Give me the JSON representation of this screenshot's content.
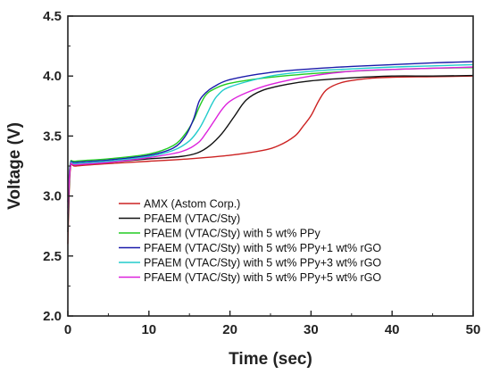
{
  "chart_data": {
    "type": "line",
    "title": "",
    "xlabel": "Time (sec)",
    "ylabel": "Voltage (V)",
    "xlim": [
      0,
      50
    ],
    "ylim": [
      2.0,
      4.5
    ],
    "xticks": [
      0,
      10,
      20,
      30,
      40,
      50
    ],
    "yticks": [
      2.0,
      2.5,
      3.0,
      3.5,
      4.0,
      4.5
    ],
    "legend_position": "bottom-center",
    "grid": false,
    "series": [
      {
        "name": "AMX (Astom Corp.)",
        "color": "#cc2222",
        "points": [
          [
            0,
            2.6
          ],
          [
            0.3,
            3.22
          ],
          [
            1,
            3.25
          ],
          [
            5,
            3.27
          ],
          [
            10,
            3.29
          ],
          [
            15,
            3.31
          ],
          [
            20,
            3.34
          ],
          [
            24,
            3.38
          ],
          [
            26,
            3.42
          ],
          [
            28,
            3.5
          ],
          [
            29,
            3.58
          ],
          [
            30,
            3.67
          ],
          [
            31,
            3.8
          ],
          [
            32,
            3.89
          ],
          [
            34,
            3.95
          ],
          [
            37,
            3.98
          ],
          [
            40,
            3.99
          ],
          [
            45,
            3.995
          ],
          [
            50,
            4.0
          ]
        ]
      },
      {
        "name": "PFAEM (VTAC/Sty)",
        "color": "#111111",
        "points": [
          [
            0,
            2.7
          ],
          [
            0.3,
            3.24
          ],
          [
            1,
            3.26
          ],
          [
            5,
            3.28
          ],
          [
            10,
            3.31
          ],
          [
            14,
            3.33
          ],
          [
            16,
            3.36
          ],
          [
            17.5,
            3.42
          ],
          [
            19,
            3.52
          ],
          [
            20.5,
            3.66
          ],
          [
            22,
            3.8
          ],
          [
            24,
            3.88
          ],
          [
            27,
            3.93
          ],
          [
            30,
            3.96
          ],
          [
            35,
            3.985
          ],
          [
            40,
            4.0
          ],
          [
            45,
            4.0
          ],
          [
            50,
            4.005
          ]
        ]
      },
      {
        "name": "PFAEM (VTAC/Sty) with 5 wt% PPy",
        "color": "#22cc22",
        "points": [
          [
            0,
            3.0
          ],
          [
            0.3,
            3.27
          ],
          [
            1,
            3.29
          ],
          [
            5,
            3.31
          ],
          [
            10,
            3.35
          ],
          [
            13,
            3.42
          ],
          [
            14.5,
            3.52
          ],
          [
            15.5,
            3.63
          ],
          [
            16.2,
            3.74
          ],
          [
            17,
            3.84
          ],
          [
            18,
            3.89
          ],
          [
            20,
            3.94
          ],
          [
            25,
            3.99
          ],
          [
            30,
            4.02
          ],
          [
            35,
            4.04
          ],
          [
            40,
            4.055
          ],
          [
            45,
            4.065
          ],
          [
            50,
            4.07
          ]
        ]
      },
      {
        "name": "PFAEM (VTAC/Sty) with 5 wt% PPy+1 wt% rGO",
        "color": "#1a1aaa",
        "points": [
          [
            0,
            2.95
          ],
          [
            0.3,
            3.26
          ],
          [
            1,
            3.28
          ],
          [
            5,
            3.3
          ],
          [
            10,
            3.34
          ],
          [
            13,
            3.4
          ],
          [
            14.5,
            3.5
          ],
          [
            15.5,
            3.64
          ],
          [
            16.2,
            3.79
          ],
          [
            17,
            3.86
          ],
          [
            18,
            3.91
          ],
          [
            20,
            3.97
          ],
          [
            25,
            4.03
          ],
          [
            30,
            4.06
          ],
          [
            35,
            4.08
          ],
          [
            40,
            4.095
          ],
          [
            45,
            4.11
          ],
          [
            50,
            4.12
          ]
        ]
      },
      {
        "name": "PFAEM (VTAC/Sty) with 5 wt% PPy+3 wt% rGO",
        "color": "#22cccc",
        "points": [
          [
            0,
            2.9
          ],
          [
            0.3,
            3.25
          ],
          [
            1,
            3.27
          ],
          [
            5,
            3.29
          ],
          [
            10,
            3.33
          ],
          [
            13,
            3.38
          ],
          [
            15,
            3.46
          ],
          [
            16.2,
            3.56
          ],
          [
            17,
            3.66
          ],
          [
            17.8,
            3.77
          ],
          [
            18.5,
            3.84
          ],
          [
            20,
            3.91
          ],
          [
            25,
            4.0
          ],
          [
            30,
            4.04
          ],
          [
            35,
            4.06
          ],
          [
            40,
            4.075
          ],
          [
            45,
            4.085
          ],
          [
            50,
            4.095
          ]
        ]
      },
      {
        "name": "PFAEM (VTAC/Sty) with 5 wt% PPy+5 wt% rGO",
        "color": "#dd22dd",
        "points": [
          [
            0,
            2.85
          ],
          [
            0.3,
            3.24
          ],
          [
            1,
            3.26
          ],
          [
            5,
            3.28
          ],
          [
            10,
            3.32
          ],
          [
            14,
            3.37
          ],
          [
            16,
            3.44
          ],
          [
            17,
            3.52
          ],
          [
            18,
            3.62
          ],
          [
            19,
            3.72
          ],
          [
            20,
            3.79
          ],
          [
            22,
            3.86
          ],
          [
            25,
            3.93
          ],
          [
            30,
            4.0
          ],
          [
            35,
            4.04
          ],
          [
            40,
            4.055
          ],
          [
            45,
            4.065
          ],
          [
            50,
            4.075
          ]
        ]
      }
    ]
  }
}
